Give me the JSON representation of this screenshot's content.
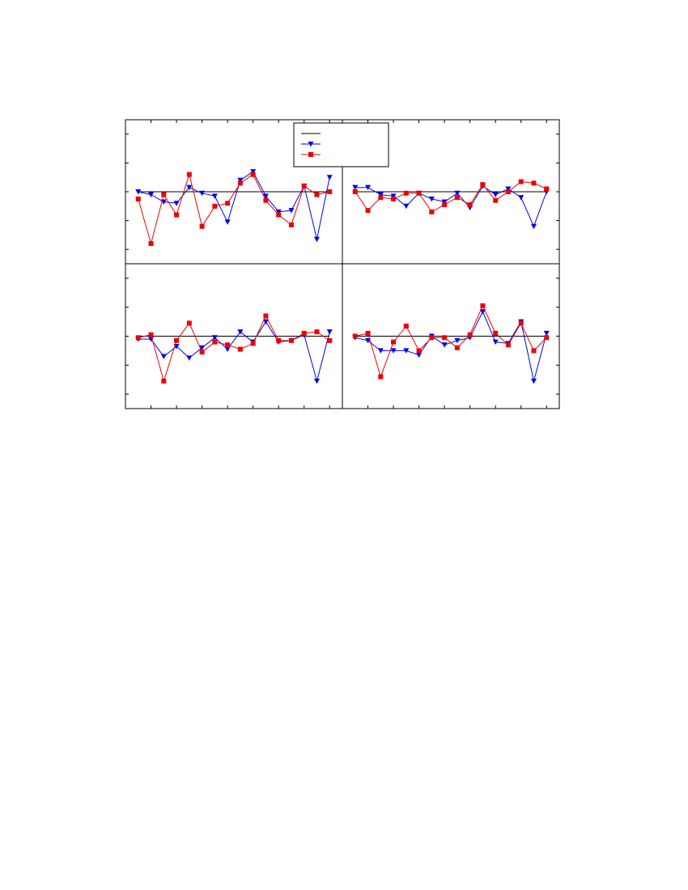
{
  "colors": {
    "reference": "#000000",
    "series_a": "#0000ee",
    "series_b": "#ee0000"
  },
  "legend": {
    "entries": [
      {
        "marker": "line",
        "color": "#000000",
        "label": ""
      },
      {
        "marker": "triangle-down",
        "color": "#0000ee",
        "label": ""
      },
      {
        "marker": "square",
        "color": "#ee0000",
        "label": ""
      }
    ]
  },
  "chart_data": [
    {
      "type": "line",
      "panel": "top-left",
      "title": "",
      "xlabel": "",
      "ylabel": "",
      "xlim": [
        0,
        17
      ],
      "ylim": [
        -2.5,
        2.5
      ],
      "reference_y": 0,
      "x": [
        1,
        2,
        3,
        4,
        5,
        6,
        7,
        8,
        9,
        10,
        11,
        12,
        13,
        14,
        15,
        16
      ],
      "series": [
        {
          "marker": "triangle-down",
          "color": "#0000ee",
          "values": [
            0.0,
            -0.1,
            -0.35,
            -0.4,
            0.15,
            -0.05,
            -0.15,
            -1.05,
            0.4,
            0.7,
            -0.15,
            -0.7,
            -0.65,
            0.2,
            -1.65,
            0.5
          ]
        },
        {
          "marker": "square",
          "color": "#ee0000",
          "values": [
            -0.25,
            -1.8,
            -0.1,
            -0.8,
            0.6,
            -1.2,
            -0.5,
            -0.4,
            0.3,
            0.6,
            -0.3,
            -0.8,
            -1.15,
            0.2,
            -0.1,
            0.0
          ]
        }
      ]
    },
    {
      "type": "line",
      "panel": "top-right",
      "title": "",
      "xlabel": "",
      "ylabel": "",
      "xlim": [
        0,
        17
      ],
      "ylim": [
        -2.5,
        2.5
      ],
      "reference_y": 0,
      "x": [
        1,
        2,
        3,
        4,
        5,
        6,
        7,
        8,
        9,
        10,
        11,
        12,
        13,
        14,
        15,
        16
      ],
      "series": [
        {
          "marker": "triangle-down",
          "color": "#0000ee",
          "values": [
            0.15,
            0.15,
            -0.1,
            -0.15,
            -0.5,
            -0.05,
            -0.25,
            -0.35,
            -0.05,
            -0.55,
            0.2,
            -0.1,
            0.1,
            -0.2,
            -1.2,
            0.0
          ]
        },
        {
          "marker": "square",
          "color": "#ee0000",
          "values": [
            0.0,
            -0.65,
            -0.2,
            -0.25,
            -0.05,
            -0.05,
            -0.7,
            -0.45,
            -0.2,
            -0.45,
            0.25,
            -0.3,
            0.0,
            0.35,
            0.3,
            0.1
          ]
        }
      ]
    },
    {
      "type": "line",
      "panel": "bottom-left",
      "title": "",
      "xlabel": "",
      "ylabel": "",
      "xlim": [
        0,
        17
      ],
      "ylim": [
        -2.5,
        2.5
      ],
      "reference_y": 0,
      "x": [
        1,
        2,
        3,
        4,
        5,
        6,
        7,
        8,
        9,
        10,
        11,
        12,
        13,
        14,
        15,
        16
      ],
      "series": [
        {
          "marker": "triangle-down",
          "color": "#0000ee",
          "values": [
            -0.1,
            -0.1,
            -0.7,
            -0.35,
            -0.75,
            -0.4,
            -0.05,
            -0.45,
            0.15,
            -0.2,
            0.5,
            -0.2,
            -0.15,
            0.05,
            -1.55,
            0.15
          ]
        },
        {
          "marker": "square",
          "color": "#ee0000",
          "values": [
            -0.05,
            0.05,
            -1.55,
            -0.15,
            0.45,
            -0.55,
            -0.2,
            -0.3,
            -0.45,
            -0.25,
            0.7,
            -0.15,
            -0.15,
            0.1,
            0.15,
            -0.15
          ]
        }
      ]
    },
    {
      "type": "line",
      "panel": "bottom-right",
      "title": "",
      "xlabel": "",
      "ylabel": "",
      "xlim": [
        0,
        17
      ],
      "ylim": [
        -2.5,
        2.5
      ],
      "reference_y": 0,
      "x": [
        1,
        2,
        3,
        4,
        5,
        6,
        7,
        8,
        9,
        10,
        11,
        12,
        13,
        14,
        15,
        16
      ],
      "series": [
        {
          "marker": "triangle-down",
          "color": "#0000ee",
          "values": [
            -0.05,
            -0.15,
            -0.5,
            -0.5,
            -0.5,
            -0.65,
            0.0,
            -0.3,
            -0.15,
            -0.05,
            0.85,
            -0.2,
            -0.25,
            0.5,
            -1.55,
            0.1
          ]
        },
        {
          "marker": "square",
          "color": "#ee0000",
          "values": [
            0.0,
            0.1,
            -1.4,
            -0.2,
            0.35,
            -0.5,
            -0.05,
            -0.05,
            -0.4,
            0.05,
            1.05,
            0.1,
            -0.3,
            0.45,
            -0.5,
            -0.05
          ]
        }
      ]
    }
  ]
}
